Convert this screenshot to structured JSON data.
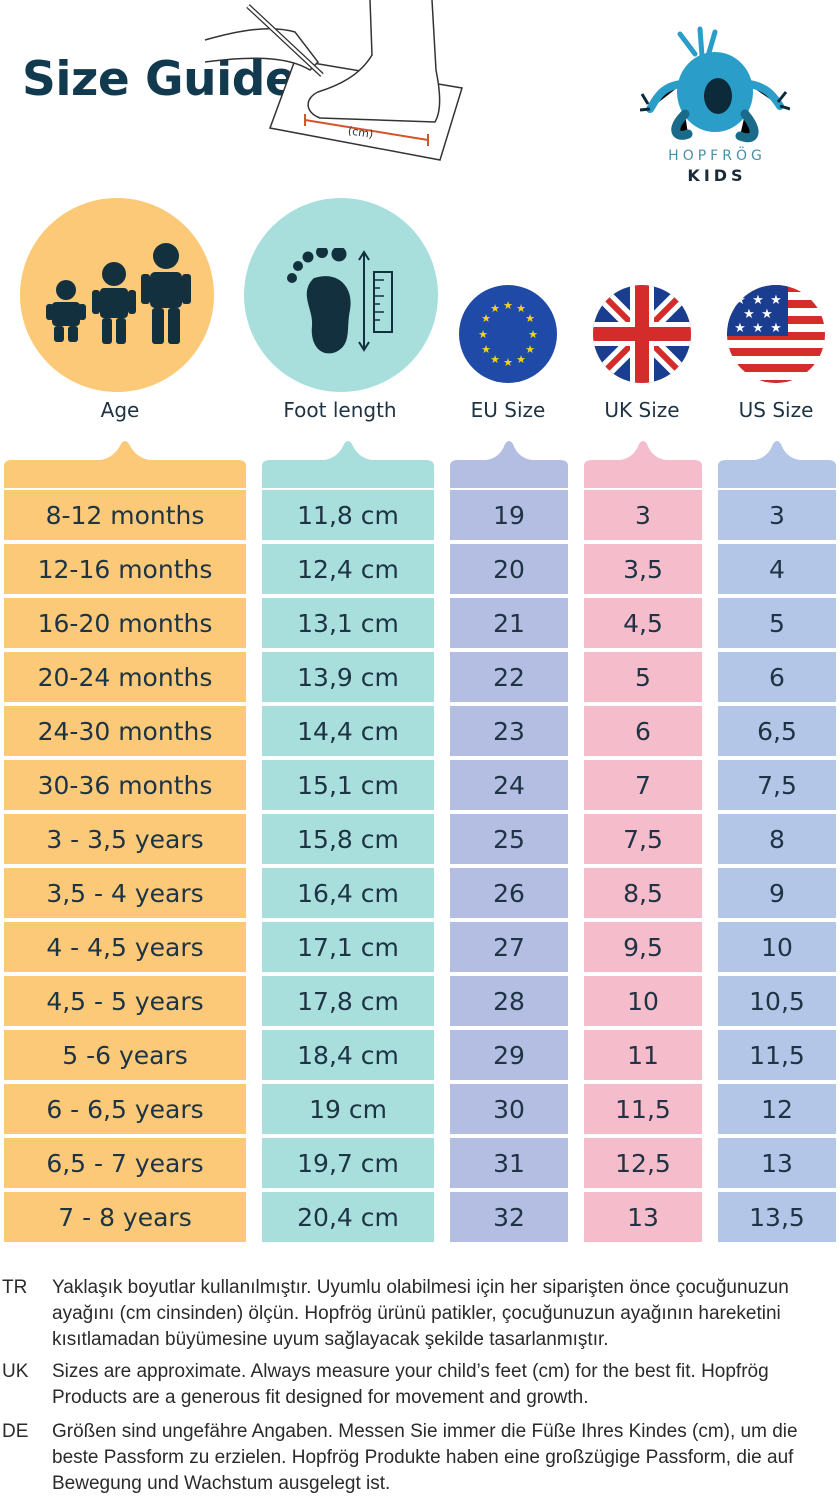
{
  "header": {
    "title": "Size Guide",
    "drawing_label": "(cm)"
  },
  "brand": {
    "name": "HOPFRÖG",
    "sub": "KIDS",
    "logo_icon": "frog-logo-icon"
  },
  "columns": [
    {
      "label": "Age",
      "icon": "children-icon",
      "color": "#fbc977"
    },
    {
      "label": "Foot length",
      "icon": "footprint-ruler-icon",
      "color": "#a8dfdd"
    },
    {
      "label": "EU Size",
      "icon": "eu-flag-icon",
      "color": "#b4bee3"
    },
    {
      "label": "UK Size",
      "icon": "uk-flag-icon",
      "color": "#f5bccc"
    },
    {
      "label": "US Size",
      "icon": "us-flag-icon",
      "color": "#b4c6e8"
    }
  ],
  "rows": [
    {
      "age": "8-12 months",
      "foot": "11,8 cm",
      "eu": "19",
      "uk": "3",
      "us": "3"
    },
    {
      "age": "12-16 months",
      "foot": "12,4 cm",
      "eu": "20",
      "uk": "3,5",
      "us": "4"
    },
    {
      "age": "16-20 months",
      "foot": "13,1 cm",
      "eu": "21",
      "uk": "4,5",
      "us": "5"
    },
    {
      "age": "20-24 months",
      "foot": "13,9 cm",
      "eu": "22",
      "uk": "5",
      "us": "6"
    },
    {
      "age": "24-30 months",
      "foot": "14,4 cm",
      "eu": "23",
      "uk": "6",
      "us": "6,5"
    },
    {
      "age": "30-36 months",
      "foot": "15,1 cm",
      "eu": "24",
      "uk": "7",
      "us": "7,5"
    },
    {
      "age": "3 - 3,5 years",
      "foot": "15,8 cm",
      "eu": "25",
      "uk": "7,5",
      "us": "8"
    },
    {
      "age": "3,5 - 4 years",
      "foot": "16,4 cm",
      "eu": "26",
      "uk": "8,5",
      "us": "9"
    },
    {
      "age": "4 - 4,5 years",
      "foot": "17,1 cm",
      "eu": "27",
      "uk": "9,5",
      "us": "10"
    },
    {
      "age": "4,5 - 5 years",
      "foot": "17,8 cm",
      "eu": "28",
      "uk": "10",
      "us": "10,5"
    },
    {
      "age": "5 -6 years",
      "foot": "18,4 cm",
      "eu": "29",
      "uk": "11",
      "us": "11,5"
    },
    {
      "age": "6 - 6,5 years",
      "foot": "19 cm",
      "eu": "30",
      "uk": "11,5",
      "us": "12"
    },
    {
      "age": "6,5 - 7 years",
      "foot": "19,7 cm",
      "eu": "31",
      "uk": "12,5",
      "us": "13"
    },
    {
      "age": "7 - 8 years",
      "foot": "20,4 cm",
      "eu": "32",
      "uk": "13",
      "us": "13,5"
    }
  ],
  "notes": [
    {
      "code": "TR",
      "text": "Yaklaşık boyutlar kullanılmıştır. Uyumlu olabilmesi için her siparişten önce çocuğunuzun ayağını (cm cinsinden) ölçün. Hopfrög ürünü patikler, çocuğunuzun ayağının hareketini kısıtlamadan büyümesine uyum sağlayacak şekilde tasarlanmıştır."
    },
    {
      "code": "UK",
      "text": "Sizes are approximate. Always measure your child’s feet (cm) for the best fit. Hopfrög Products are a generous fit designed for movement and growth."
    },
    {
      "code": "DE",
      "text": "Größen sind ungefähre Angaben. Messen Sie immer die Füße Ihres Kindes (cm), um die beste Passform zu erzielen. Hopfrög Produkte haben eine großzügige Passform, die auf Bewegung und Wachstum ausgelegt ist."
    }
  ]
}
